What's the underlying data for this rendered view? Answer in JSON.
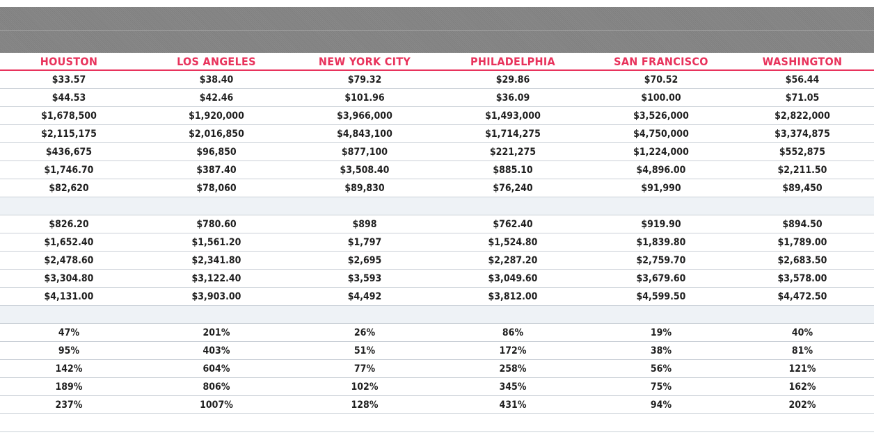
{
  "headers": [
    "HOUSTON",
    "LOS ANGELES",
    "NEW YORK CITY",
    "PHILADELPHIA",
    "SAN FRANCISCO",
    "WASHINGTON"
  ],
  "section1": [
    [
      "$33.57",
      "$38.40",
      "$79.32",
      "$29.86",
      "$70.52",
      "$56.44"
    ],
    [
      "$44.53",
      "$42.46",
      "$101.96",
      "$36.09",
      "$100.00",
      "$71.05"
    ],
    [
      "$1,678,500",
      "$1,920,000",
      "$3,966,000",
      "$1,493,000",
      "$3,526,000",
      "$2,822,000"
    ],
    [
      "$2,115,175",
      "$2,016,850",
      "$4,843,100",
      "$1,714,275",
      "$4,750,000",
      "$3,374,875"
    ],
    [
      "$436,675",
      "$96,850",
      "$877,100",
      "$221,275",
      "$1,224,000",
      "$552,875"
    ],
    [
      "$1,746.70",
      "$387.40",
      "$3,508.40",
      "$885.10",
      "$4,896.00",
      "$2,211.50"
    ],
    [
      "$82,620",
      "$78,060",
      "$89,830",
      "$76,240",
      "$91,990",
      "$89,450"
    ]
  ],
  "section2": [
    [
      "$826.20",
      "$780.60",
      "$898",
      "$762.40",
      "$919.90",
      "$894.50"
    ],
    [
      "$1,652.40",
      "$1,561.20",
      "$1,797",
      "$1,524.80",
      "$1,839.80",
      "$1,789.00"
    ],
    [
      "$2,478.60",
      "$2,341.80",
      "$2,695",
      "$2,287.20",
      "$2,759.70",
      "$2,683.50"
    ],
    [
      "$3,304.80",
      "$3,122.40",
      "$3,593",
      "$3,049.60",
      "$3,679.60",
      "$3,578.00"
    ],
    [
      "$4,131.00",
      "$3,903.00",
      "$4,492",
      "$3,812.00",
      "$4,599.50",
      "$4,472.50"
    ]
  ],
  "section3": [
    [
      "47%",
      "201%",
      "26%",
      "86%",
      "19%",
      "40%"
    ],
    [
      "95%",
      "403%",
      "51%",
      "172%",
      "38%",
      "81%"
    ],
    [
      "142%",
      "604%",
      "77%",
      "258%",
      "56%",
      "121%"
    ],
    [
      "189%",
      "806%",
      "102%",
      "345%",
      "75%",
      "162%"
    ],
    [
      "237%",
      "1007%",
      "128%",
      "431%",
      "94%",
      "202%"
    ]
  ]
}
